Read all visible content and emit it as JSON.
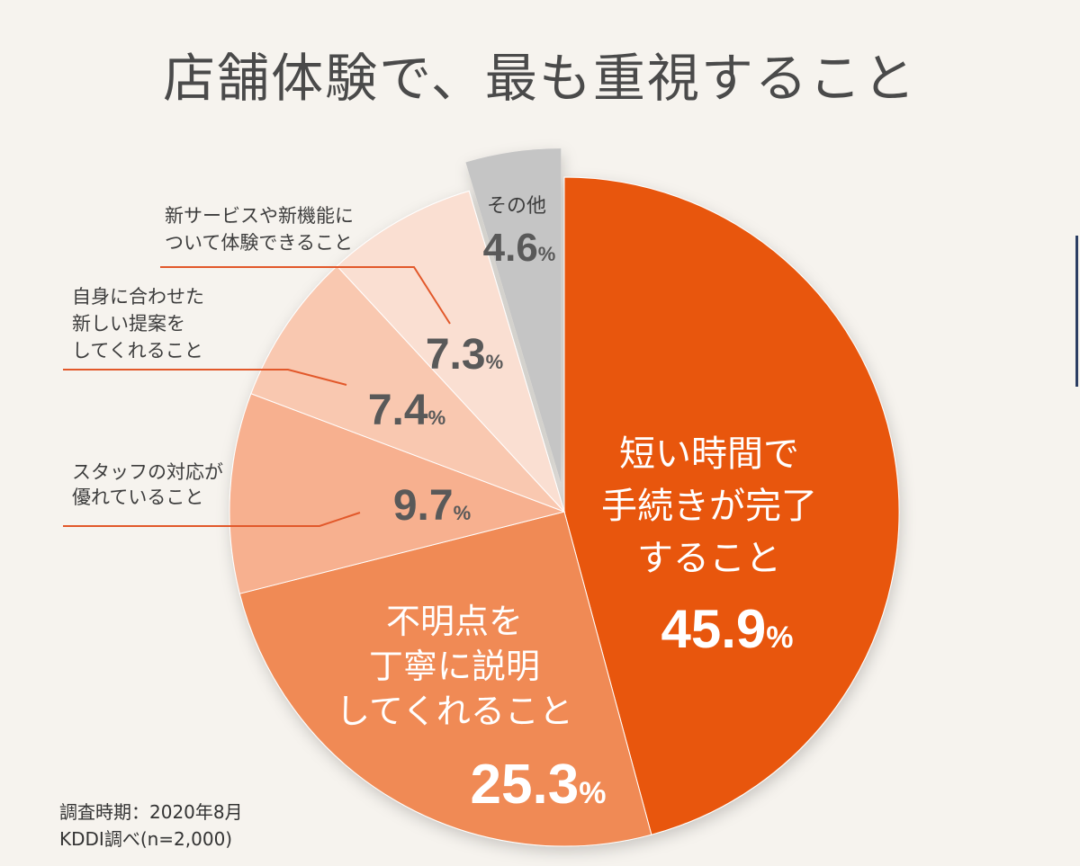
{
  "title": "店舗体験で、最も重視すること",
  "footer": {
    "period": "調査時期：2020年8月",
    "source": "KDDI調べ(n=2,000)"
  },
  "colors": {
    "background": "#f6f3ee",
    "leader_line": "#e2582a",
    "slice_main": "#e8560c",
    "slice_2": "#f08a55",
    "slice_3": "#f7b08f",
    "slice_4": "#f9c8b0",
    "slice_5": "#fadfd2",
    "slice_other": "#c5c5c5"
  },
  "chart_data": {
    "type": "pie",
    "title": "店舗体験で、最も重視すること",
    "unit": "%",
    "slices": [
      {
        "label_lines": [
          "短い時間で",
          "手続きが完了",
          "すること"
        ],
        "value": 45.9,
        "value_text": "45.9",
        "color": "#e8560c"
      },
      {
        "label_lines": [
          "不明点を",
          "丁寧に説明",
          "してくれること"
        ],
        "value": 25.3,
        "value_text": "25.3",
        "color": "#f08a55"
      },
      {
        "label_lines": [
          "スタッフの対応が",
          "優れていること"
        ],
        "value": 9.7,
        "value_text": "9.7",
        "color": "#f7b08f"
      },
      {
        "label_lines": [
          "自身に合わせた",
          "新しい提案を",
          "してくれること"
        ],
        "value": 7.4,
        "value_text": "7.4",
        "color": "#f9c8b0"
      },
      {
        "label_lines": [
          "新サービスや新機能に",
          "ついて体験できること"
        ],
        "value": 7.3,
        "value_text": "7.3",
        "color": "#fadfd2"
      },
      {
        "label_lines": [
          "その他"
        ],
        "value": 4.6,
        "value_text": "4.6",
        "color": "#c5c5c5",
        "exploded": true
      }
    ]
  }
}
